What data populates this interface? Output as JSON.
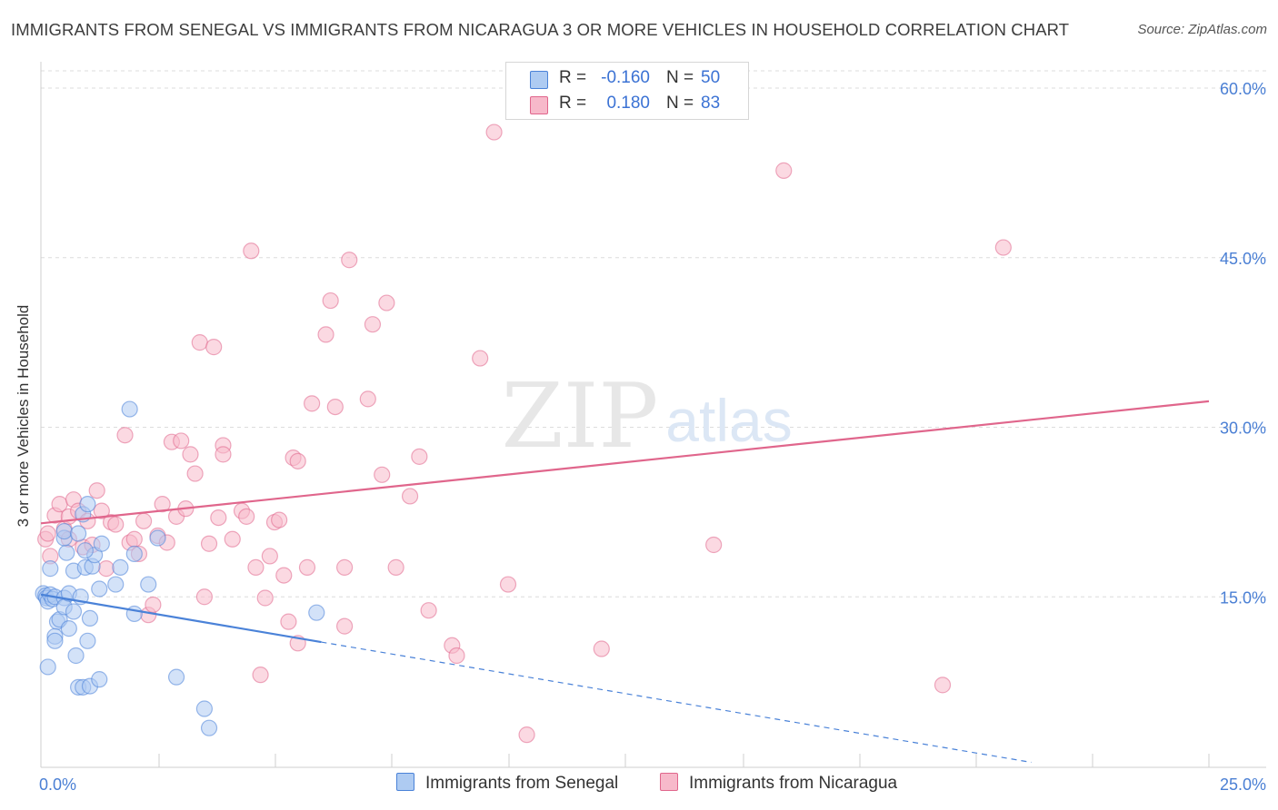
{
  "title": "IMMIGRANTS FROM SENEGAL VS IMMIGRANTS FROM NICARAGUA 3 OR MORE VEHICLES IN HOUSEHOLD CORRELATION CHART",
  "source": "Source: ZipAtlas.com",
  "watermark": {
    "zip": "ZIP",
    "atlas": "atlas"
  },
  "legend": {
    "rows": [
      {
        "r_label": "R =",
        "r_value": "-0.160",
        "n_label": "N =",
        "n_value": "50",
        "color": "#aecbf2"
      },
      {
        "r_label": "R =",
        "r_value": "0.180",
        "n_label": "N =",
        "n_value": "83",
        "color": "#f7b9ca"
      }
    ]
  },
  "bottom_legend": [
    "Immigrants from Senegal",
    "Immigrants from Nicaragua"
  ],
  "chart_data": {
    "type": "scatter",
    "title": "IMMIGRANTS FROM SENEGAL VS IMMIGRANTS FROM NICARAGUA 3 OR MORE VEHICLES IN HOUSEHOLD CORRELATION CHART",
    "xlabel": "",
    "ylabel": "3 or more Vehicles in Household",
    "xlim": [
      0,
      25
    ],
    "ylim": [
      0,
      60
    ],
    "x_tick_labels": [
      {
        "value": 0,
        "label": "0.0%"
      },
      {
        "value": 25,
        "label": "25.0%"
      }
    ],
    "y_tick_labels": [
      {
        "value": 15,
        "label": "15.0%"
      },
      {
        "value": 30,
        "label": "30.0%"
      },
      {
        "value": 45,
        "label": "45.0%"
      },
      {
        "value": 60,
        "label": "60.0%"
      }
    ],
    "grid": true,
    "series": [
      {
        "name": "Immigrants from Senegal",
        "color": "#4a82d8",
        "fill": "#aecbf2",
        "R": -0.16,
        "N": 50,
        "trend": {
          "x0": 0,
          "y0": 15.2,
          "x1": 6,
          "y1": 11.0,
          "dash_to_x": 21.2
        },
        "points": [
          [
            0.05,
            15.3
          ],
          [
            0.1,
            15.1
          ],
          [
            0.12,
            14.9
          ],
          [
            0.15,
            14.6
          ],
          [
            0.2,
            15.2
          ],
          [
            0.25,
            14.8
          ],
          [
            0.3,
            15.0
          ],
          [
            0.2,
            17.5
          ],
          [
            0.35,
            12.8
          ],
          [
            0.3,
            11.5
          ],
          [
            0.3,
            11.1
          ],
          [
            0.15,
            8.8
          ],
          [
            0.4,
            13.0
          ],
          [
            0.5,
            14.9
          ],
          [
            0.5,
            14.1
          ],
          [
            0.55,
            18.9
          ],
          [
            0.5,
            20.2
          ],
          [
            0.5,
            20.8
          ],
          [
            0.6,
            12.2
          ],
          [
            0.6,
            15.3
          ],
          [
            0.7,
            13.7
          ],
          [
            0.7,
            17.3
          ],
          [
            0.75,
            9.8
          ],
          [
            0.8,
            7.0
          ],
          [
            0.8,
            20.6
          ],
          [
            0.85,
            15.0
          ],
          [
            0.9,
            7.0
          ],
          [
            0.9,
            22.3
          ],
          [
            0.95,
            17.6
          ],
          [
            1.0,
            23.2
          ],
          [
            1.0,
            11.1
          ],
          [
            1.05,
            13.1
          ],
          [
            1.05,
            7.1
          ],
          [
            1.1,
            17.7
          ],
          [
            1.15,
            18.7
          ],
          [
            1.25,
            15.7
          ],
          [
            1.25,
            7.7
          ],
          [
            1.3,
            19.7
          ],
          [
            1.6,
            16.1
          ],
          [
            1.7,
            17.6
          ],
          [
            1.9,
            31.6
          ],
          [
            2.0,
            13.5
          ],
          [
            2.0,
            18.8
          ],
          [
            2.3,
            16.1
          ],
          [
            2.5,
            20.2
          ],
          [
            2.9,
            7.9
          ],
          [
            3.5,
            5.1
          ],
          [
            3.6,
            3.4
          ],
          [
            5.9,
            13.6
          ],
          [
            0.95,
            19.1
          ]
        ]
      },
      {
        "name": "Immigrants from Nicaragua",
        "color": "#e0668c",
        "fill": "#f7b9ca",
        "R": 0.18,
        "N": 83,
        "trend": {
          "x0": 0,
          "y0": 21.5,
          "x1": 25,
          "y1": 32.3
        },
        "points": [
          [
            0.1,
            20.1
          ],
          [
            0.2,
            18.6
          ],
          [
            0.3,
            22.2
          ],
          [
            0.4,
            23.2
          ],
          [
            0.5,
            21.0
          ],
          [
            0.6,
            20.1
          ],
          [
            0.6,
            22.1
          ],
          [
            0.7,
            23.6
          ],
          [
            0.8,
            22.6
          ],
          [
            0.9,
            19.4
          ],
          [
            1.0,
            21.7
          ],
          [
            1.1,
            19.6
          ],
          [
            1.2,
            24.4
          ],
          [
            1.3,
            22.6
          ],
          [
            1.4,
            17.5
          ],
          [
            1.5,
            21.6
          ],
          [
            1.6,
            21.4
          ],
          [
            1.8,
            29.3
          ],
          [
            1.9,
            19.8
          ],
          [
            2.0,
            20.1
          ],
          [
            2.1,
            18.8
          ],
          [
            2.2,
            21.7
          ],
          [
            2.3,
            13.4
          ],
          [
            2.4,
            14.3
          ],
          [
            2.5,
            20.4
          ],
          [
            2.6,
            23.2
          ],
          [
            2.7,
            19.8
          ],
          [
            2.8,
            28.7
          ],
          [
            2.9,
            22.1
          ],
          [
            3.0,
            28.8
          ],
          [
            3.1,
            22.8
          ],
          [
            3.2,
            27.6
          ],
          [
            3.3,
            25.9
          ],
          [
            3.4,
            37.5
          ],
          [
            3.5,
            15.0
          ],
          [
            3.6,
            19.7
          ],
          [
            3.7,
            37.1
          ],
          [
            3.8,
            22.0
          ],
          [
            3.9,
            28.4
          ],
          [
            3.9,
            27.6
          ],
          [
            4.1,
            20.1
          ],
          [
            4.3,
            22.6
          ],
          [
            4.4,
            22.1
          ],
          [
            4.5,
            45.6
          ],
          [
            4.6,
            17.6
          ],
          [
            4.7,
            8.1
          ],
          [
            4.8,
            14.9
          ],
          [
            4.9,
            18.6
          ],
          [
            5.0,
            21.6
          ],
          [
            5.1,
            21.8
          ],
          [
            5.2,
            16.9
          ],
          [
            5.3,
            12.8
          ],
          [
            5.4,
            27.3
          ],
          [
            5.5,
            10.9
          ],
          [
            5.5,
            27.0
          ],
          [
            5.7,
            17.6
          ],
          [
            5.8,
            32.1
          ],
          [
            6.1,
            38.2
          ],
          [
            6.2,
            41.2
          ],
          [
            6.3,
            31.8
          ],
          [
            6.5,
            12.4
          ],
          [
            6.5,
            17.6
          ],
          [
            6.6,
            44.8
          ],
          [
            7.0,
            32.5
          ],
          [
            7.1,
            39.1
          ],
          [
            7.3,
            25.8
          ],
          [
            7.4,
            41.0
          ],
          [
            7.6,
            17.6
          ],
          [
            7.9,
            23.9
          ],
          [
            8.1,
            27.4
          ],
          [
            8.3,
            13.8
          ],
          [
            8.8,
            10.7
          ],
          [
            8.9,
            9.8
          ],
          [
            9.4,
            36.1
          ],
          [
            9.7,
            56.1
          ],
          [
            10.0,
            16.1
          ],
          [
            10.4,
            2.8
          ],
          [
            12.0,
            10.4
          ],
          [
            14.4,
            19.6
          ],
          [
            15.9,
            52.7
          ],
          [
            19.3,
            7.2
          ],
          [
            20.6,
            45.9
          ],
          [
            0.15,
            20.6
          ]
        ]
      }
    ]
  }
}
